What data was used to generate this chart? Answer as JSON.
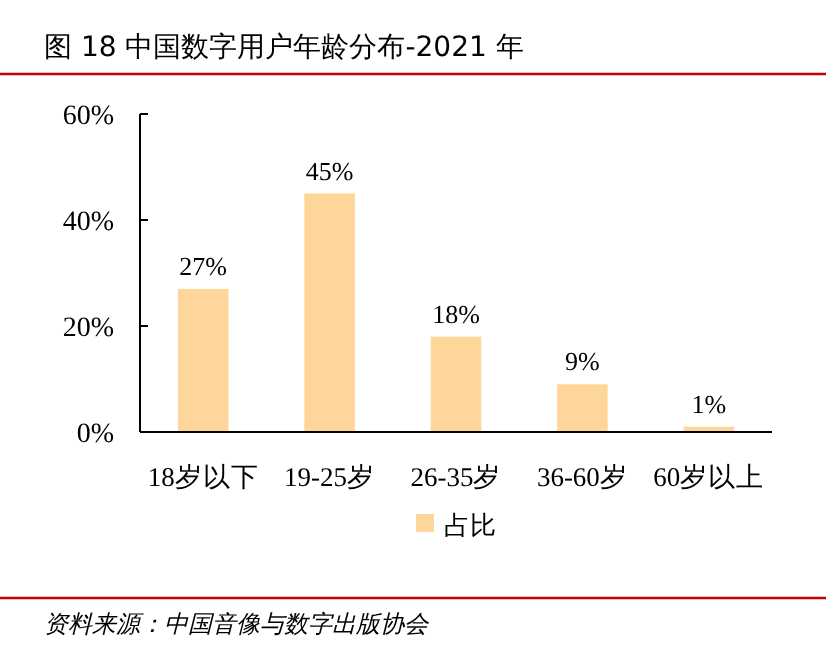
{
  "chart_data": {
    "type": "bar",
    "title": "图 18 中国数字用户年龄分布-2021 年",
    "categories": [
      "18岁以下",
      "19-25岁",
      "26-35岁",
      "36-60岁",
      "60岁以上"
    ],
    "series": [
      {
        "name": "占比",
        "color": "#ffd699",
        "values": [
          27,
          45,
          18,
          9,
          1
        ]
      }
    ],
    "value_labels": [
      "27%",
      "45%",
      "18%",
      "9%",
      "1%"
    ],
    "ylim": [
      0,
      60
    ],
    "yticks": [
      {
        "value": 0,
        "label": "0%"
      },
      {
        "value": 20,
        "label": "20%"
      },
      {
        "value": 40,
        "label": "40%"
      },
      {
        "value": 60,
        "label": "60%"
      }
    ],
    "legend": "bottom",
    "annotations": [
      "资料来源：中国音像与数字出版协会"
    ]
  }
}
